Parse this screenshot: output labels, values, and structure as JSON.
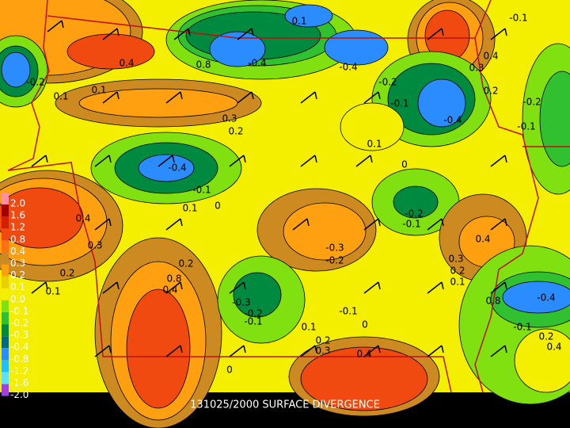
{
  "title": "131025/2000 SURFACE DIVERGENCE",
  "legend": {
    "labels": [
      "2.0",
      "1.6",
      "1.2",
      "0.8",
      "0.4",
      "0.3",
      "0.2",
      "0.1",
      "0.0",
      "-0.1",
      "-0.2",
      "-0.3",
      "-0.4",
      "-0.8",
      "-1.2",
      "-1.6",
      "-2.0"
    ]
  },
  "contour_labels": [
    "-0.4",
    "-0.4",
    "-0.4",
    "0.1",
    "-0.1",
    "0.4",
    "0.3",
    "0.2",
    "0.1",
    "0.4",
    "0.3",
    "0.2",
    "0.1",
    "0.1",
    "0",
    "-0.1",
    "-0.3",
    "-0.2",
    "-0.2",
    "-0.1",
    "0.4",
    "0.3",
    "0.2",
    "0.1",
    "0.8",
    "0.4",
    "0.2",
    "-0.3",
    "-0.2",
    "-0.1",
    "-0.1",
    "0",
    "0.1",
    "0.2",
    "0.3",
    "0.4",
    "0",
    "-0.4",
    "0.8",
    "-0.1",
    "0.2",
    "0.4",
    "0.1",
    "-0.2",
    "0.1",
    "-0.2",
    "-0.1",
    "-0.4",
    "-0.2",
    "-0.1",
    "0",
    "0.4",
    "0.3",
    "0.2",
    "0.8"
  ]
}
